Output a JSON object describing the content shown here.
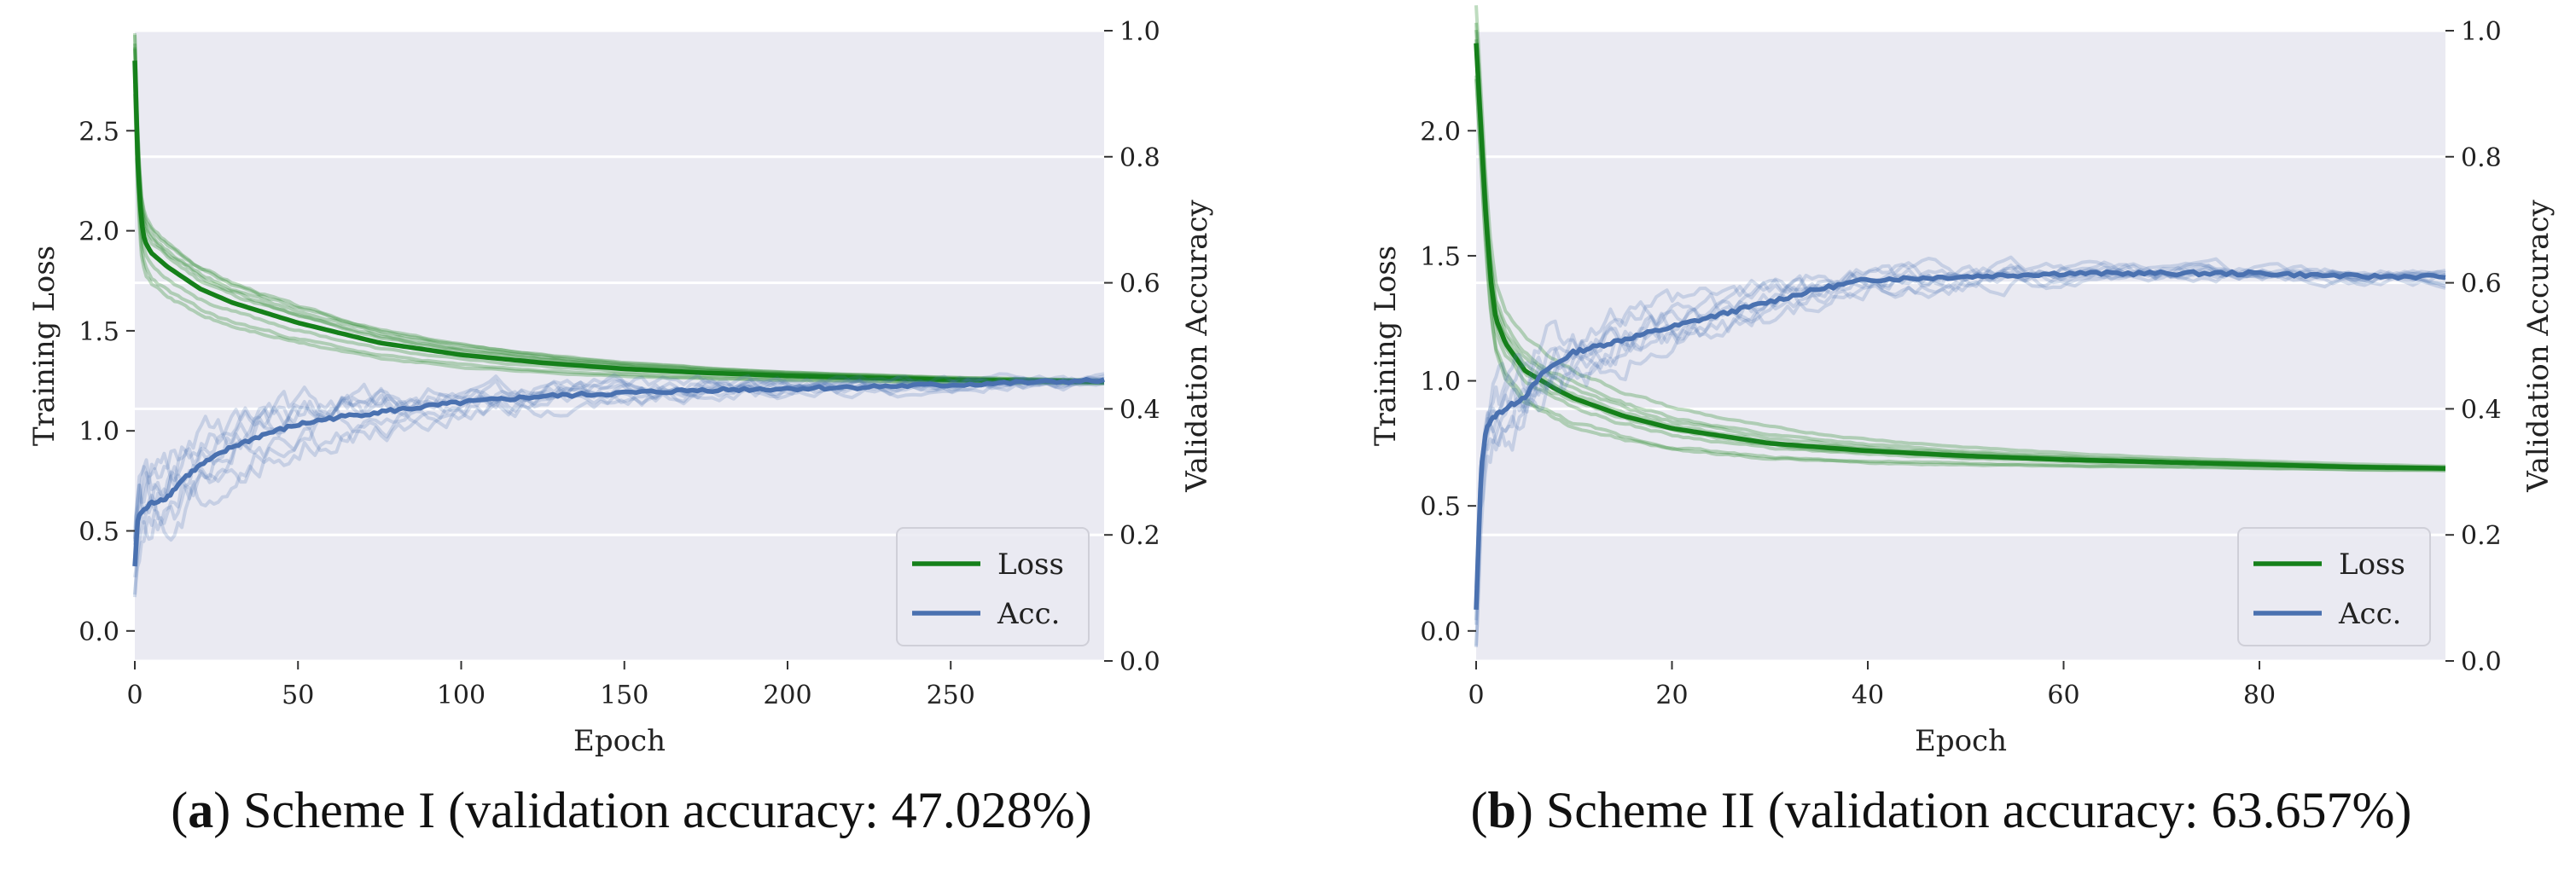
{
  "colors": {
    "loss": "#15801a",
    "acc": "#4a71b0",
    "panel_bg": "#eaeaf2",
    "grid": "#ffffff"
  },
  "chart_data": [
    {
      "type": "line",
      "panel": "a",
      "caption_letter": "a",
      "caption_text": " Scheme I (validation accuracy: 47.028%)",
      "xlabel": "Epoch",
      "ylabel_left": "Training Loss",
      "ylabel_right": "Validation Accuracy",
      "xlim": [
        0,
        297
      ],
      "ylim_left": [
        -0.15,
        3.0
      ],
      "ylim_right": [
        0.0,
        1.0
      ],
      "xticks": [
        0,
        50,
        100,
        150,
        200,
        250
      ],
      "yticks_left": [
        0.0,
        0.5,
        1.0,
        1.5,
        2.0,
        2.5
      ],
      "yticks_right": [
        0.0,
        0.2,
        0.4,
        0.6,
        0.8,
        1.0
      ],
      "legend": {
        "position": "lower-right",
        "entries": [
          "Loss",
          "Acc."
        ]
      },
      "series": [
        {
          "name": "Loss",
          "axis": "left",
          "x": [
            0,
            1,
            2,
            3,
            5,
            10,
            20,
            30,
            50,
            75,
            100,
            125,
            150,
            175,
            200,
            225,
            250,
            275,
            297
          ],
          "values": [
            2.85,
            2.3,
            2.05,
            1.95,
            1.89,
            1.82,
            1.71,
            1.64,
            1.54,
            1.44,
            1.38,
            1.34,
            1.31,
            1.29,
            1.275,
            1.265,
            1.255,
            1.25,
            1.245
          ]
        },
        {
          "name": "Acc.",
          "axis": "right",
          "x": [
            0,
            1,
            3,
            5,
            10,
            15,
            20,
            30,
            40,
            50,
            60,
            75,
            100,
            125,
            150,
            175,
            200,
            225,
            250,
            275,
            297
          ],
          "values": [
            0.15,
            0.23,
            0.24,
            0.25,
            0.26,
            0.29,
            0.31,
            0.34,
            0.36,
            0.375,
            0.385,
            0.395,
            0.41,
            0.42,
            0.425,
            0.43,
            0.432,
            0.435,
            0.438,
            0.442,
            0.445
          ]
        }
      ]
    },
    {
      "type": "line",
      "panel": "b",
      "caption_letter": "b",
      "caption_text": " Scheme II (validation accuracy: 63.657%)",
      "xlabel": "Epoch",
      "ylabel_left": "Training Loss",
      "ylabel_right": "Validation Accuracy",
      "xlim": [
        0,
        99
      ],
      "ylim_left": [
        -0.12,
        2.4
      ],
      "ylim_right": [
        0.0,
        1.0
      ],
      "xticks": [
        0,
        20,
        40,
        60,
        80
      ],
      "yticks_left": [
        0.0,
        0.5,
        1.0,
        1.5,
        2.0
      ],
      "yticks_right": [
        0.0,
        0.2,
        0.4,
        0.6,
        0.8,
        1.0
      ],
      "legend": {
        "position": "lower-right",
        "entries": [
          "Loss",
          "Acc."
        ]
      },
      "series": [
        {
          "name": "Loss",
          "axis": "left",
          "x": [
            0,
            0.5,
            1,
            1.5,
            2,
            3,
            5,
            8,
            10,
            15,
            20,
            30,
            40,
            50,
            60,
            70,
            80,
            90,
            99
          ],
          "values": [
            2.35,
            2.0,
            1.65,
            1.4,
            1.25,
            1.15,
            1.04,
            0.97,
            0.93,
            0.86,
            0.81,
            0.75,
            0.72,
            0.7,
            0.685,
            0.675,
            0.665,
            0.655,
            0.65
          ]
        },
        {
          "name": "Acc.",
          "axis": "right",
          "x": [
            0,
            0.5,
            1,
            2,
            3,
            5,
            7,
            10,
            15,
            20,
            25,
            30,
            35,
            40,
            50,
            60,
            70,
            80,
            90,
            99
          ],
          "values": [
            0.08,
            0.3,
            0.37,
            0.39,
            0.4,
            0.42,
            0.46,
            0.49,
            0.51,
            0.53,
            0.55,
            0.57,
            0.59,
            0.605,
            0.61,
            0.615,
            0.615,
            0.615,
            0.61,
            0.61
          ]
        }
      ]
    }
  ]
}
